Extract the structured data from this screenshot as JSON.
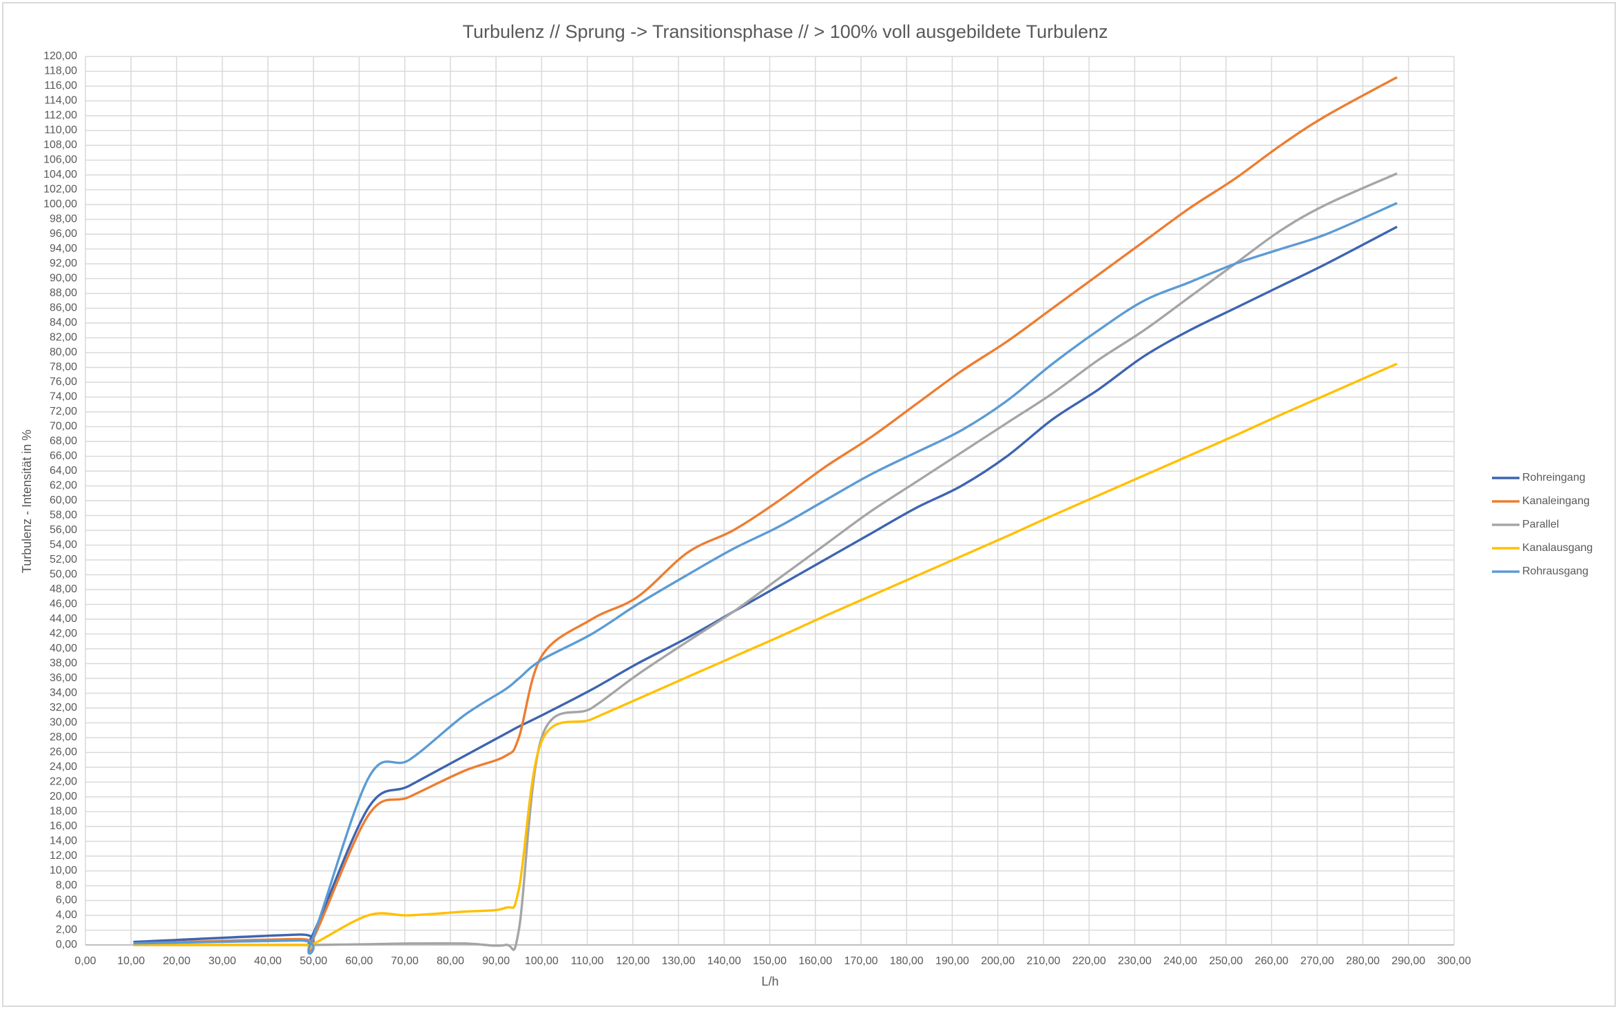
{
  "chart_data": {
    "type": "line",
    "title": "Turbulenz // Sprung -> Transitionsphase // > 100% voll ausgebildete Turbulenz",
    "x_label": "L/h",
    "y_label": "Turbulenz - Intensität in %",
    "x": [
      10.5,
      47,
      49.5,
      62,
      71,
      83,
      92,
      95,
      100,
      111,
      121,
      132,
      142,
      152,
      162,
      172,
      182,
      192,
      202,
      212,
      222,
      232,
      242,
      252,
      262,
      272,
      287.5
    ],
    "series": [
      {
        "name": "Rohreingang",
        "color": "#3d64b0",
        "values": [
          0.4,
          1.4,
          1.0,
          18.5,
          21.5,
          25.5,
          28.5,
          29.5,
          31,
          34.5,
          38,
          41.5,
          45,
          48.5,
          52,
          55.5,
          59,
          62,
          66,
          71,
          75,
          79.5,
          83,
          86,
          89,
          92,
          97
        ]
      },
      {
        "name": "Kanaleingang",
        "color": "#ed7d31",
        "values": [
          0.2,
          0.8,
          0.3,
          17.5,
          20,
          23.5,
          25.5,
          28,
          39,
          44,
          47,
          53,
          56,
          60,
          64.5,
          68.5,
          73,
          77.5,
          81.5,
          86,
          90.5,
          95,
          99.5,
          103.5,
          108,
          112,
          117.2
        ]
      },
      {
        "name": "Parallel",
        "color": "#a5a5a5",
        "values": [
          0,
          0,
          0,
          0.1,
          0.2,
          0.2,
          0,
          2,
          28,
          32,
          36.5,
          41,
          45,
          49.5,
          54,
          58.5,
          62.5,
          66.5,
          70.5,
          74.5,
          79,
          83,
          87.5,
          92,
          96.5,
          100,
          104.2
        ]
      },
      {
        "name": "Kanalausgang",
        "color": "#ffc000",
        "values": [
          0,
          0,
          0,
          4,
          4,
          4.5,
          5,
          7.5,
          27.5,
          30.5,
          33.2,
          36.2,
          38.9,
          41.6,
          44.4,
          47.1,
          49.8,
          52.5,
          55.2,
          58,
          60.7,
          63.4,
          66.1,
          68.8,
          71.6,
          74.3,
          78.5
        ]
      },
      {
        "name": "Rohrausgang",
        "color": "#5b9bd5",
        "values": [
          0.2,
          0.6,
          0.4,
          22.5,
          25,
          31,
          34.5,
          36,
          38.5,
          42,
          46,
          50,
          53.5,
          56.5,
          60,
          63.5,
          66.5,
          69.5,
          73.5,
          78.5,
          83,
          87,
          89.5,
          92,
          94,
          96,
          100.2
        ]
      }
    ],
    "xlim": [
      0,
      300
    ],
    "ylim": [
      0,
      120
    ],
    "xticks": [
      {
        "value": 0,
        "label": "0,00"
      },
      {
        "value": 10,
        "label": "10,00"
      },
      {
        "value": 20,
        "label": "20,00"
      },
      {
        "value": 30,
        "label": "30,00"
      },
      {
        "value": 40,
        "label": "40,00"
      },
      {
        "value": 50,
        "label": "50,00"
      },
      {
        "value": 60,
        "label": "60,00"
      },
      {
        "value": 70,
        "label": "70,00"
      },
      {
        "value": 80,
        "label": "80,00"
      },
      {
        "value": 90,
        "label": "90,00"
      },
      {
        "value": 100,
        "label": "100,00"
      },
      {
        "value": 110,
        "label": "110,00"
      },
      {
        "value": 120,
        "label": "120,00"
      },
      {
        "value": 130,
        "label": "130,00"
      },
      {
        "value": 140,
        "label": "140,00"
      },
      {
        "value": 150,
        "label": "150,00"
      },
      {
        "value": 160,
        "label": "160,00"
      },
      {
        "value": 170,
        "label": "170,00"
      },
      {
        "value": 180,
        "label": "180,00"
      },
      {
        "value": 190,
        "label": "190,00"
      },
      {
        "value": 200,
        "label": "200,00"
      },
      {
        "value": 210,
        "label": "210,00"
      },
      {
        "value": 220,
        "label": "220,00"
      },
      {
        "value": 230,
        "label": "230,00"
      },
      {
        "value": 240,
        "label": "240,00"
      },
      {
        "value": 250,
        "label": "250,00"
      },
      {
        "value": 260,
        "label": "260,00"
      },
      {
        "value": 270,
        "label": "270,00"
      },
      {
        "value": 280,
        "label": "280,00"
      },
      {
        "value": 290,
        "label": "290,00"
      },
      {
        "value": 300,
        "label": "300,00"
      }
    ],
    "yticks": [
      {
        "value": 0,
        "label": "0,00"
      },
      {
        "value": 2,
        "label": "2,00"
      },
      {
        "value": 4,
        "label": "4,00"
      },
      {
        "value": 6,
        "label": "6,00"
      },
      {
        "value": 8,
        "label": "8,00"
      },
      {
        "value": 10,
        "label": "10,00"
      },
      {
        "value": 12,
        "label": "12,00"
      },
      {
        "value": 14,
        "label": "14,00"
      },
      {
        "value": 16,
        "label": "16,00"
      },
      {
        "value": 18,
        "label": "18,00"
      },
      {
        "value": 20,
        "label": "20,00"
      },
      {
        "value": 22,
        "label": "22,00"
      },
      {
        "value": 24,
        "label": "24,00"
      },
      {
        "value": 26,
        "label": "26,00"
      },
      {
        "value": 28,
        "label": "28,00"
      },
      {
        "value": 30,
        "label": "30,00"
      },
      {
        "value": 32,
        "label": "32,00"
      },
      {
        "value": 34,
        "label": "34,00"
      },
      {
        "value": 36,
        "label": "36,00"
      },
      {
        "value": 38,
        "label": "38,00"
      },
      {
        "value": 40,
        "label": "40,00"
      },
      {
        "value": 42,
        "label": "42,00"
      },
      {
        "value": 44,
        "label": "44,00"
      },
      {
        "value": 46,
        "label": "46,00"
      },
      {
        "value": 48,
        "label": "48,00"
      },
      {
        "value": 50,
        "label": "50,00"
      },
      {
        "value": 52,
        "label": "52,00"
      },
      {
        "value": 54,
        "label": "54,00"
      },
      {
        "value": 56,
        "label": "56,00"
      },
      {
        "value": 58,
        "label": "58,00"
      },
      {
        "value": 60,
        "label": "60,00"
      },
      {
        "value": 62,
        "label": "62,00"
      },
      {
        "value": 64,
        "label": "64,00"
      },
      {
        "value": 66,
        "label": "66,00"
      },
      {
        "value": 68,
        "label": "68,00"
      },
      {
        "value": 70,
        "label": "70,00"
      },
      {
        "value": 72,
        "label": "72,00"
      },
      {
        "value": 74,
        "label": "74,00"
      },
      {
        "value": 76,
        "label": "76,00"
      },
      {
        "value": 78,
        "label": "78,00"
      },
      {
        "value": 80,
        "label": "80,00"
      },
      {
        "value": 82,
        "label": "82,00"
      },
      {
        "value": 84,
        "label": "84,00"
      },
      {
        "value": 86,
        "label": "86,00"
      },
      {
        "value": 88,
        "label": "88,00"
      },
      {
        "value": 90,
        "label": "90,00"
      },
      {
        "value": 92,
        "label": "92,00"
      },
      {
        "value": 94,
        "label": "94,00"
      },
      {
        "value": 96,
        "label": "96,00"
      },
      {
        "value": 98,
        "label": "98,00"
      },
      {
        "value": 100,
        "label": "100,00"
      },
      {
        "value": 102,
        "label": "102,00"
      },
      {
        "value": 104,
        "label": "104,00"
      },
      {
        "value": 106,
        "label": "106,00"
      },
      {
        "value": 108,
        "label": "108,00"
      },
      {
        "value": 110,
        "label": "110,00"
      },
      {
        "value": 112,
        "label": "112,00"
      },
      {
        "value": 114,
        "label": "114,00"
      },
      {
        "value": 116,
        "label": "116,00"
      },
      {
        "value": 118,
        "label": "118,00"
      },
      {
        "value": 120,
        "label": "120,00"
      }
    ],
    "grid": true,
    "legend": "right"
  }
}
